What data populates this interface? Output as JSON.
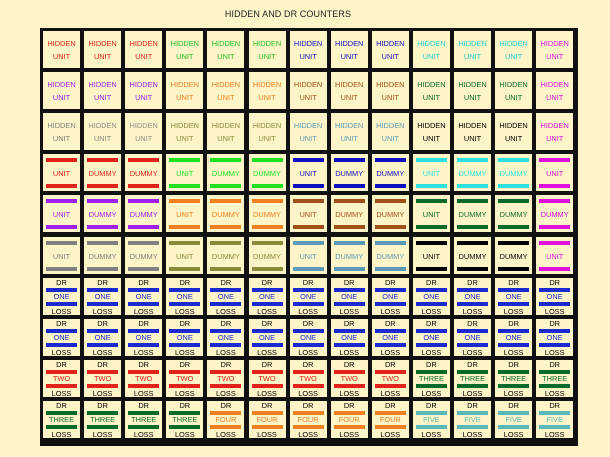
{
  "title": "HIDDEN AND DR COUNTERS",
  "hidden_label_1": "HIDDEN",
  "hidden_label_2": "UNIT",
  "dr_label": "DR",
  "loss_label": "LOSS",
  "hidden_row_colors": [
    [
      "#e2231a",
      "#e2231a",
      "#e2231a",
      "#20c020",
      "#20c020",
      "#20c020",
      "#1010c0",
      "#1010c0",
      "#1010c0",
      "#20d0d0",
      "#20d0d0",
      "#20d0d0",
      "#e010e0"
    ],
    [
      "#a020f0",
      "#a020f0",
      "#a020f0",
      "#f08020",
      "#f08020",
      "#f08020",
      "#a05018",
      "#a05018",
      "#a05018",
      "#0a6a2a",
      "#0a6a2a",
      "#0a6a2a",
      "#e010e0"
    ],
    [
      "#808080",
      "#8a8a8a",
      "#909090",
      "#8a8a3a",
      "#8a8a3a",
      "#8a8a3a",
      "#5a9ab8",
      "#5a9ab8",
      "#5a9ab8",
      "#000000",
      "#000000",
      "#000000",
      "#e010e0"
    ]
  ],
  "unit_rows": [
    {
      "labels": [
        "UNIT",
        "DUMMY",
        "DUMMY",
        "UNIT",
        "DUMMY",
        "DUMMY",
        "UNIT",
        "DUMMY",
        "DUMMY",
        "UNIT",
        "DUMMY",
        "DUMMY",
        "UNIT"
      ],
      "colors": [
        "#e2231a",
        "#e2231a",
        "#e2231a",
        "#20e020",
        "#20e020",
        "#20e020",
        "#1010c0",
        "#1010c0",
        "#1010c0",
        "#30e0e0",
        "#30e0e0",
        "#30e0e0",
        "#e010e0"
      ]
    },
    {
      "labels": [
        "UNIT",
        "DUMMY",
        "DUMMY",
        "UNIT",
        "DUMMY",
        "DUMMY",
        "UNIT",
        "DUMMY",
        "DUMMY",
        "UNIT",
        "DUMMY",
        "DUMMY",
        "DUMMY"
      ],
      "colors": [
        "#a020f0",
        "#a020f0",
        "#a020f0",
        "#f08020",
        "#f08020",
        "#f08020",
        "#a05018",
        "#a05018",
        "#a05018",
        "#0a6a2a",
        "#0a6a2a",
        "#0a6a2a",
        "#e010e0"
      ]
    },
    {
      "labels": [
        "UNIT",
        "DUMMY",
        "DUMMY",
        "UNIT",
        "DUMMY",
        "DUMMY",
        "UNIT",
        "DUMMY",
        "DUMMY",
        "UNIT",
        "DUMMY",
        "DUMMY",
        "UNIT"
      ],
      "colors": [
        "#808080",
        "#808080",
        "#808080",
        "#8a8a3a",
        "#8a8a3a",
        "#8a8a3a",
        "#5a9ab8",
        "#5a9ab8",
        "#5a9ab8",
        "#000000",
        "#000000",
        "#000000",
        "#e010e0"
      ]
    }
  ],
  "dr_rows": [
    {
      "middles": [
        "ONE",
        "ONE",
        "ONE",
        "ONE",
        "ONE",
        "ONE",
        "ONE",
        "ONE",
        "ONE",
        "ONE",
        "ONE",
        "ONE",
        "ONE"
      ],
      "colors": [
        "#1a2ad0",
        "#1a2ad0",
        "#1a2ad0",
        "#1a2ad0",
        "#1a2ad0",
        "#1a2ad0",
        "#1a2ad0",
        "#1a2ad0",
        "#1a2ad0",
        "#1a2ad0",
        "#1a2ad0",
        "#1a2ad0",
        "#1a2ad0"
      ]
    },
    {
      "middles": [
        "ONE",
        "ONE",
        "ONE",
        "ONE",
        "ONE",
        "ONE",
        "ONE",
        "ONE",
        "ONE",
        "ONE",
        "ONE",
        "ONE",
        "ONE"
      ],
      "colors": [
        "#1a2ad0",
        "#1a2ad0",
        "#1a2ad0",
        "#1a2ad0",
        "#1a2ad0",
        "#1a2ad0",
        "#1a2ad0",
        "#1a2ad0",
        "#1a2ad0",
        "#1a2ad0",
        "#1a2ad0",
        "#1a2ad0",
        "#1a2ad0"
      ]
    },
    {
      "middles": [
        "TWO",
        "TWO",
        "TWO",
        "TWO",
        "TWO",
        "TWO",
        "TWO",
        "TWO",
        "TWO",
        "THREE",
        "THREE",
        "THREE",
        "THREE"
      ],
      "colors": [
        "#e2231a",
        "#e2231a",
        "#e2231a",
        "#e2231a",
        "#e2231a",
        "#e2231a",
        "#e2231a",
        "#e2231a",
        "#e2231a",
        "#0a6a2a",
        "#0a6a2a",
        "#0a6a2a",
        "#0a6a2a"
      ]
    },
    {
      "middles": [
        "THREE",
        "THREE",
        "THREE",
        "THREE",
        "FOUR",
        "FOUR",
        "FOUR",
        "FOUR",
        "FOUR",
        "FIVE",
        "FIVE",
        "FIVE",
        "FIVE"
      ],
      "colors": [
        "#0a6a2a",
        "#0a6a2a",
        "#0a6a2a",
        "#0a6a2a",
        "#f08020",
        "#f08020",
        "#f08020",
        "#f08020",
        "#f08020",
        "#5ab8b8",
        "#5ab8b8",
        "#5ab8b8",
        "#5ab8b8"
      ]
    }
  ]
}
